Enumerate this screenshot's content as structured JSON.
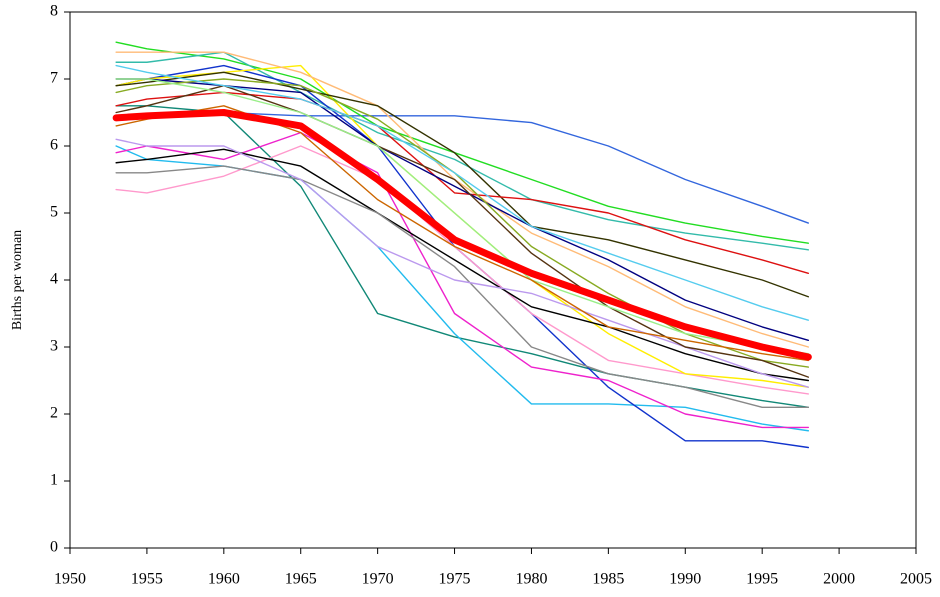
{
  "chart_data": {
    "type": "line",
    "y_label": "Births per woman",
    "x": [
      1953,
      1955,
      1960,
      1965,
      1970,
      1975,
      1980,
      1985,
      1990,
      1995,
      1998
    ],
    "xlim": [
      1950,
      2005
    ],
    "xticks": [
      1950,
      1955,
      1960,
      1965,
      1970,
      1975,
      1980,
      1985,
      1990,
      1995,
      2000,
      2005
    ],
    "ylim": [
      0,
      8
    ],
    "yticks": [
      0,
      1,
      2,
      3,
      4,
      5,
      6,
      7,
      8
    ],
    "grid": false,
    "series": [
      {
        "color": "#3366dd",
        "values": [
          6.4,
          6.45,
          6.5,
          6.45,
          6.45,
          6.45,
          6.35,
          6.0,
          5.5,
          5.1,
          4.85
        ]
      },
      {
        "color": "#22dd22",
        "values": [
          7.55,
          7.45,
          7.3,
          7.0,
          6.3,
          5.9,
          5.5,
          5.1,
          4.85,
          4.65,
          4.55
        ]
      },
      {
        "color": "#33bbaa",
        "values": [
          7.25,
          7.25,
          7.4,
          6.8,
          6.2,
          5.8,
          5.2,
          4.9,
          4.7,
          4.55,
          4.45
        ]
      },
      {
        "color": "#118877",
        "values": [
          6.6,
          6.6,
          6.5,
          5.4,
          3.5,
          3.15,
          2.9,
          2.6,
          2.4,
          2.2,
          2.1
        ]
      },
      {
        "color": "#22bbee",
        "values": [
          6.0,
          5.8,
          5.7,
          5.5,
          4.5,
          3.2,
          2.15,
          2.15,
          2.1,
          1.85,
          1.75
        ]
      },
      {
        "color": "#1133cc",
        "values": [
          6.9,
          7.0,
          7.2,
          6.9,
          6.0,
          4.5,
          3.5,
          2.4,
          1.6,
          1.6,
          1.5
        ]
      },
      {
        "color": "#ee22cc",
        "values": [
          5.9,
          6.0,
          5.8,
          6.2,
          5.6,
          3.5,
          2.7,
          2.5,
          2.0,
          1.8,
          1.8
        ]
      },
      {
        "color": "#ff99cc",
        "values": [
          5.35,
          5.3,
          5.55,
          6.0,
          5.5,
          4.5,
          3.5,
          2.8,
          2.6,
          2.4,
          2.3
        ]
      },
      {
        "color": "#ffee00",
        "values": [
          6.9,
          7.0,
          7.1,
          7.2,
          6.0,
          5.0,
          4.0,
          3.2,
          2.6,
          2.5,
          2.4
        ]
      },
      {
        "color": "#ffbb77",
        "values": [
          7.4,
          7.4,
          7.4,
          7.1,
          6.6,
          5.5,
          4.7,
          4.2,
          3.6,
          3.2,
          3.0
        ]
      },
      {
        "color": "#333300",
        "values": [
          6.9,
          6.95,
          7.1,
          6.85,
          6.6,
          5.9,
          4.8,
          4.6,
          4.3,
          4.0,
          3.75
        ]
      },
      {
        "color": "#000000",
        "values": [
          5.75,
          5.8,
          5.95,
          5.7,
          5.0,
          4.3,
          3.6,
          3.3,
          2.9,
          2.6,
          2.5
        ]
      },
      {
        "color": "#dd1111",
        "values": [
          6.6,
          6.7,
          6.8,
          6.7,
          6.3,
          5.3,
          5.2,
          5.0,
          4.6,
          4.3,
          4.1
        ]
      },
      {
        "color": "#888888",
        "values": [
          5.6,
          5.6,
          5.7,
          5.5,
          5.0,
          4.2,
          3.0,
          2.6,
          2.4,
          2.1,
          2.1
        ]
      },
      {
        "color": "#000080",
        "values": [
          7.0,
          7.0,
          6.9,
          6.8,
          6.0,
          5.4,
          4.8,
          4.3,
          3.7,
          3.3,
          3.1
        ]
      },
      {
        "color": "#88aa22",
        "values": [
          6.8,
          6.9,
          7.0,
          6.9,
          6.4,
          5.6,
          4.5,
          3.8,
          3.2,
          2.8,
          2.7
        ]
      },
      {
        "color": "#bb99ee",
        "values": [
          6.1,
          6.0,
          6.0,
          5.5,
          4.5,
          4.0,
          3.8,
          3.4,
          3.0,
          2.6,
          2.4
        ]
      },
      {
        "color": "#553311",
        "values": [
          6.5,
          6.6,
          6.9,
          6.5,
          6.0,
          5.5,
          4.4,
          3.6,
          3.0,
          2.8,
          2.55
        ]
      },
      {
        "color": "#55ccee",
        "values": [
          7.2,
          7.1,
          6.9,
          6.7,
          6.3,
          5.6,
          4.8,
          4.4,
          4.0,
          3.6,
          3.4
        ]
      },
      {
        "color": "#99ee88",
        "values": [
          7.0,
          7.0,
          6.8,
          6.5,
          6.0,
          5.0,
          4.0,
          3.6,
          3.2,
          3.0,
          2.9
        ]
      },
      {
        "color": "#cc6600",
        "values": [
          6.3,
          6.4,
          6.6,
          6.2,
          5.2,
          4.5,
          4.0,
          3.3,
          3.1,
          2.9,
          2.8
        ]
      },
      {
        "color": "#ff0000",
        "width": 7,
        "values": [
          6.42,
          6.45,
          6.5,
          6.3,
          5.5,
          4.6,
          4.1,
          3.7,
          3.3,
          3.0,
          2.85
        ]
      }
    ]
  }
}
